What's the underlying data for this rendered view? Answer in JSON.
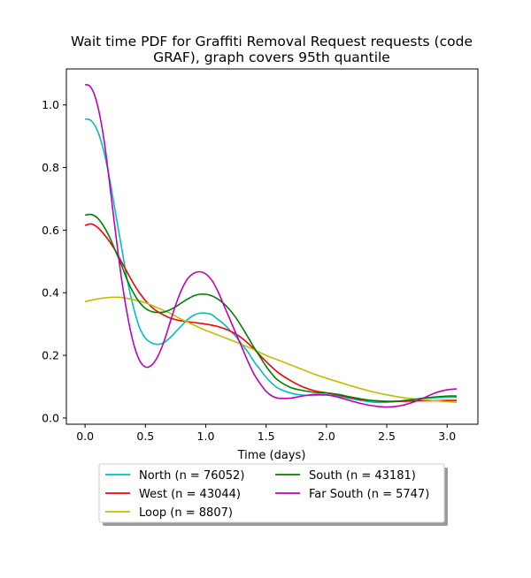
{
  "chart_data": {
    "type": "line",
    "title_line1": "Wait time PDF for Graffiti Removal Request  requests (code",
    "title_line2": "GRAF), graph covers 95th quantile",
    "xlabel": "Time (days)",
    "ylabel": "",
    "xlim": [
      -0.155,
      3.255
    ],
    "ylim": [
      -0.02,
      1.115
    ],
    "xticks": [
      0.0,
      0.5,
      1.0,
      1.5,
      2.0,
      2.5,
      3.0
    ],
    "xtick_labels": [
      "0.0",
      "0.5",
      "1.0",
      "1.5",
      "2.0",
      "2.5",
      "3.0"
    ],
    "yticks": [
      0.0,
      0.2,
      0.4,
      0.6,
      0.8,
      1.0
    ],
    "ytick_labels": [
      "0.0",
      "0.2",
      "0.4",
      "0.6",
      "0.8",
      "1.0"
    ],
    "grid": false,
    "legend_position": "below-center",
    "series": [
      {
        "name": "North (n = 76052)",
        "color": "#00bfbf",
        "points": [
          [
            0.0,
            0.955
          ],
          [
            0.05,
            0.95
          ],
          [
            0.1,
            0.92
          ],
          [
            0.15,
            0.86
          ],
          [
            0.2,
            0.77
          ],
          [
            0.25,
            0.66
          ],
          [
            0.3,
            0.55
          ],
          [
            0.35,
            0.44
          ],
          [
            0.4,
            0.355
          ],
          [
            0.45,
            0.29
          ],
          [
            0.5,
            0.255
          ],
          [
            0.55,
            0.24
          ],
          [
            0.6,
            0.235
          ],
          [
            0.65,
            0.24
          ],
          [
            0.7,
            0.255
          ],
          [
            0.75,
            0.275
          ],
          [
            0.8,
            0.295
          ],
          [
            0.85,
            0.315
          ],
          [
            0.9,
            0.328
          ],
          [
            0.95,
            0.335
          ],
          [
            1.0,
            0.335
          ],
          [
            1.05,
            0.33
          ],
          [
            1.1,
            0.315
          ],
          [
            1.15,
            0.3
          ],
          [
            1.2,
            0.28
          ],
          [
            1.25,
            0.26
          ],
          [
            1.3,
            0.235
          ],
          [
            1.35,
            0.21
          ],
          [
            1.4,
            0.18
          ],
          [
            1.45,
            0.155
          ],
          [
            1.5,
            0.13
          ],
          [
            1.55,
            0.11
          ],
          [
            1.6,
            0.095
          ],
          [
            1.7,
            0.08
          ],
          [
            1.8,
            0.073
          ],
          [
            1.9,
            0.072
          ],
          [
            2.0,
            0.073
          ],
          [
            2.1,
            0.07
          ],
          [
            2.2,
            0.062
          ],
          [
            2.3,
            0.055
          ],
          [
            2.4,
            0.05
          ],
          [
            2.5,
            0.05
          ],
          [
            2.6,
            0.053
          ],
          [
            2.7,
            0.058
          ],
          [
            2.8,
            0.062
          ],
          [
            2.9,
            0.065
          ],
          [
            3.0,
            0.066
          ],
          [
            3.08,
            0.066
          ]
        ]
      },
      {
        "name": "West (n = 43044)",
        "color": "#ff0000",
        "points": [
          [
            0.0,
            0.615
          ],
          [
            0.05,
            0.62
          ],
          [
            0.1,
            0.61
          ],
          [
            0.15,
            0.59
          ],
          [
            0.2,
            0.565
          ],
          [
            0.25,
            0.535
          ],
          [
            0.3,
            0.5
          ],
          [
            0.35,
            0.465
          ],
          [
            0.4,
            0.43
          ],
          [
            0.45,
            0.4
          ],
          [
            0.5,
            0.375
          ],
          [
            0.55,
            0.355
          ],
          [
            0.6,
            0.34
          ],
          [
            0.7,
            0.32
          ],
          [
            0.8,
            0.31
          ],
          [
            0.9,
            0.305
          ],
          [
            1.0,
            0.3
          ],
          [
            1.1,
            0.292
          ],
          [
            1.2,
            0.278
          ],
          [
            1.3,
            0.255
          ],
          [
            1.4,
            0.22
          ],
          [
            1.5,
            0.18
          ],
          [
            1.6,
            0.145
          ],
          [
            1.7,
            0.12
          ],
          [
            1.8,
            0.1
          ],
          [
            1.9,
            0.087
          ],
          [
            2.0,
            0.08
          ],
          [
            2.1,
            0.073
          ],
          [
            2.2,
            0.065
          ],
          [
            2.3,
            0.058
          ],
          [
            2.4,
            0.055
          ],
          [
            2.5,
            0.053
          ],
          [
            2.6,
            0.053
          ],
          [
            2.7,
            0.054
          ],
          [
            2.8,
            0.055
          ],
          [
            2.9,
            0.055
          ],
          [
            3.0,
            0.056
          ],
          [
            3.08,
            0.056
          ]
        ]
      },
      {
        "name": "Loop (n = 8807)",
        "color": "#bfbf00",
        "points": [
          [
            0.0,
            0.372
          ],
          [
            0.1,
            0.38
          ],
          [
            0.2,
            0.385
          ],
          [
            0.3,
            0.385
          ],
          [
            0.4,
            0.378
          ],
          [
            0.5,
            0.368
          ],
          [
            0.6,
            0.352
          ],
          [
            0.7,
            0.335
          ],
          [
            0.8,
            0.315
          ],
          [
            0.9,
            0.297
          ],
          [
            1.0,
            0.28
          ],
          [
            1.1,
            0.265
          ],
          [
            1.2,
            0.25
          ],
          [
            1.3,
            0.235
          ],
          [
            1.4,
            0.218
          ],
          [
            1.5,
            0.2
          ],
          [
            1.6,
            0.185
          ],
          [
            1.7,
            0.17
          ],
          [
            1.8,
            0.155
          ],
          [
            1.9,
            0.14
          ],
          [
            2.0,
            0.127
          ],
          [
            2.1,
            0.115
          ],
          [
            2.2,
            0.103
          ],
          [
            2.3,
            0.092
          ],
          [
            2.4,
            0.082
          ],
          [
            2.5,
            0.074
          ],
          [
            2.6,
            0.067
          ],
          [
            2.7,
            0.062
          ],
          [
            2.8,
            0.058
          ],
          [
            2.9,
            0.055
          ],
          [
            3.0,
            0.052
          ],
          [
            3.08,
            0.05
          ]
        ]
      },
      {
        "name": "South (n = 43181)",
        "color": "#008000",
        "points": [
          [
            0.0,
            0.648
          ],
          [
            0.05,
            0.65
          ],
          [
            0.1,
            0.64
          ],
          [
            0.15,
            0.615
          ],
          [
            0.2,
            0.58
          ],
          [
            0.25,
            0.535
          ],
          [
            0.3,
            0.49
          ],
          [
            0.35,
            0.44
          ],
          [
            0.4,
            0.4
          ],
          [
            0.45,
            0.37
          ],
          [
            0.5,
            0.35
          ],
          [
            0.55,
            0.34
          ],
          [
            0.6,
            0.337
          ],
          [
            0.65,
            0.338
          ],
          [
            0.7,
            0.345
          ],
          [
            0.75,
            0.355
          ],
          [
            0.8,
            0.368
          ],
          [
            0.85,
            0.38
          ],
          [
            0.9,
            0.39
          ],
          [
            0.95,
            0.395
          ],
          [
            1.0,
            0.395
          ],
          [
            1.05,
            0.39
          ],
          [
            1.1,
            0.38
          ],
          [
            1.15,
            0.365
          ],
          [
            1.2,
            0.345
          ],
          [
            1.25,
            0.32
          ],
          [
            1.3,
            0.29
          ],
          [
            1.35,
            0.258
          ],
          [
            1.4,
            0.225
          ],
          [
            1.45,
            0.195
          ],
          [
            1.5,
            0.165
          ],
          [
            1.55,
            0.14
          ],
          [
            1.6,
            0.12
          ],
          [
            1.7,
            0.098
          ],
          [
            1.8,
            0.088
          ],
          [
            1.9,
            0.082
          ],
          [
            2.0,
            0.08
          ],
          [
            2.1,
            0.075
          ],
          [
            2.2,
            0.067
          ],
          [
            2.3,
            0.06
          ],
          [
            2.4,
            0.055
          ],
          [
            2.5,
            0.053
          ],
          [
            2.6,
            0.054
          ],
          [
            2.7,
            0.058
          ],
          [
            2.8,
            0.063
          ],
          [
            2.9,
            0.067
          ],
          [
            3.0,
            0.07
          ],
          [
            3.08,
            0.07
          ]
        ]
      },
      {
        "name": "Far South (n = 5747)",
        "color": "#bf00bf",
        "points": [
          [
            0.0,
            1.065
          ],
          [
            0.04,
            1.06
          ],
          [
            0.08,
            1.03
          ],
          [
            0.12,
            0.97
          ],
          [
            0.16,
            0.88
          ],
          [
            0.2,
            0.76
          ],
          [
            0.25,
            0.6
          ],
          [
            0.3,
            0.45
          ],
          [
            0.35,
            0.33
          ],
          [
            0.4,
            0.24
          ],
          [
            0.45,
            0.185
          ],
          [
            0.5,
            0.163
          ],
          [
            0.55,
            0.168
          ],
          [
            0.6,
            0.195
          ],
          [
            0.65,
            0.24
          ],
          [
            0.7,
            0.3
          ],
          [
            0.75,
            0.36
          ],
          [
            0.8,
            0.41
          ],
          [
            0.85,
            0.445
          ],
          [
            0.9,
            0.462
          ],
          [
            0.95,
            0.467
          ],
          [
            1.0,
            0.46
          ],
          [
            1.05,
            0.44
          ],
          [
            1.1,
            0.405
          ],
          [
            1.15,
            0.36
          ],
          [
            1.2,
            0.315
          ],
          [
            1.25,
            0.27
          ],
          [
            1.3,
            0.225
          ],
          [
            1.35,
            0.18
          ],
          [
            1.4,
            0.14
          ],
          [
            1.45,
            0.11
          ],
          [
            1.5,
            0.085
          ],
          [
            1.55,
            0.07
          ],
          [
            1.6,
            0.063
          ],
          [
            1.7,
            0.063
          ],
          [
            1.8,
            0.07
          ],
          [
            1.9,
            0.075
          ],
          [
            2.0,
            0.074
          ],
          [
            2.1,
            0.066
          ],
          [
            2.2,
            0.055
          ],
          [
            2.3,
            0.045
          ],
          [
            2.4,
            0.038
          ],
          [
            2.5,
            0.035
          ],
          [
            2.6,
            0.038
          ],
          [
            2.7,
            0.048
          ],
          [
            2.8,
            0.063
          ],
          [
            2.9,
            0.08
          ],
          [
            3.0,
            0.09
          ],
          [
            3.08,
            0.093
          ]
        ]
      }
    ]
  }
}
